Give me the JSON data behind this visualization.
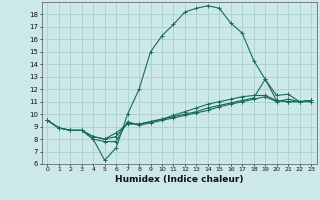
{
  "xlabel": "Humidex (Indice chaleur)",
  "background_color": "#cce8e8",
  "grid_color": "#aacfcf",
  "line_color": "#1a6b5a",
  "x_hours": [
    0,
    1,
    2,
    3,
    4,
    5,
    6,
    7,
    8,
    9,
    10,
    11,
    12,
    13,
    14,
    15,
    16,
    17,
    18,
    19,
    20,
    21,
    22,
    23
  ],
  "curve1": [
    9.5,
    8.9,
    8.7,
    8.7,
    8.0,
    6.3,
    7.3,
    10.0,
    12.0,
    15.0,
    16.3,
    17.2,
    18.2,
    18.5,
    18.7,
    18.5,
    17.3,
    16.5,
    14.3,
    12.8,
    11.1,
    11.0,
    11.0,
    11.1
  ],
  "curve2": [
    9.5,
    8.9,
    8.7,
    8.7,
    8.2,
    8.0,
    8.5,
    9.2,
    9.2,
    9.4,
    9.6,
    9.9,
    10.2,
    10.5,
    10.8,
    11.0,
    11.2,
    11.4,
    11.5,
    11.5,
    11.1,
    11.0,
    11.0,
    11.1
  ],
  "curve3": [
    9.5,
    8.9,
    8.7,
    8.7,
    8.2,
    8.0,
    8.2,
    9.3,
    9.2,
    9.4,
    9.6,
    9.8,
    10.0,
    10.2,
    10.5,
    10.7,
    10.9,
    11.1,
    11.3,
    12.8,
    11.5,
    11.6,
    11.0,
    11.1
  ],
  "curve4": [
    9.5,
    8.9,
    8.7,
    8.7,
    8.0,
    7.8,
    7.8,
    9.4,
    9.1,
    9.3,
    9.5,
    9.7,
    9.9,
    10.1,
    10.3,
    10.6,
    10.8,
    11.0,
    11.2,
    11.4,
    11.0,
    11.2,
    11.0,
    11.0
  ],
  "ylim": [
    6,
    19
  ],
  "yticks": [
    6,
    7,
    8,
    9,
    10,
    11,
    12,
    13,
    14,
    15,
    16,
    17,
    18
  ],
  "xlim": [
    -0.5,
    23.5
  ]
}
